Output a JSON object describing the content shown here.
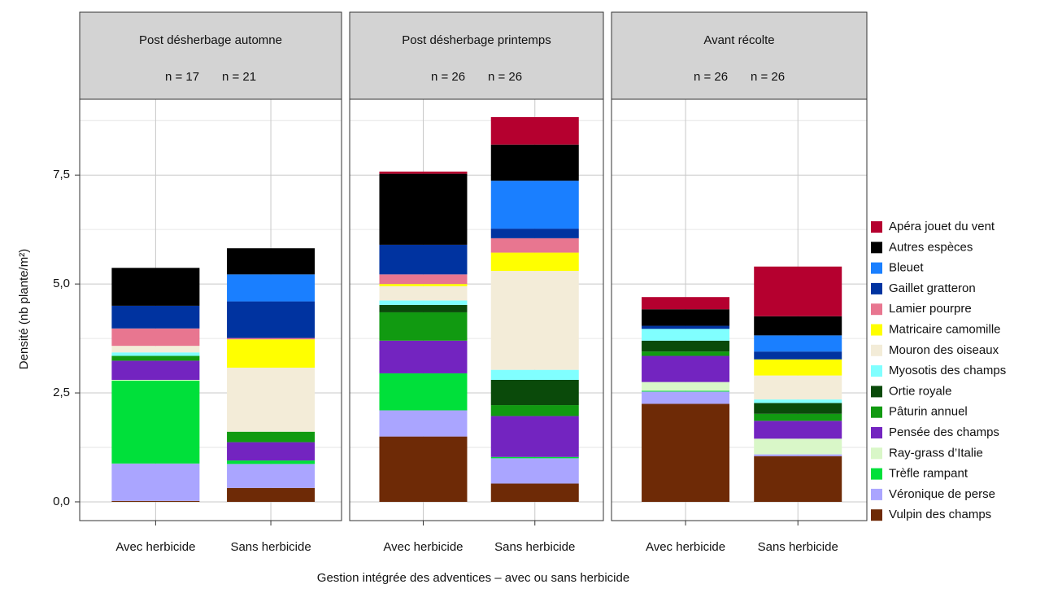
{
  "chart_data": {
    "type": "bar",
    "stacked": true,
    "ylabel": "Densité (nb plante/m²)",
    "xlabel": "Gestion intégrée des adventices – avec ou sans herbicide",
    "facets": [
      {
        "title": "Post désherbage automne",
        "labels": [
          "n = 17",
          "n = 21"
        ]
      },
      {
        "title": "Post désherbage printemps",
        "labels": [
          "n = 26",
          "n = 26"
        ]
      },
      {
        "title": "Avant récolte",
        "labels": [
          "n = 26",
          "n = 26"
        ]
      }
    ],
    "categories": [
      "Avec herbicide",
      "Sans herbicide",
      "Avec herbicide",
      "Sans herbicide",
      "Avec herbicide",
      "Sans herbicide"
    ],
    "ylim": [
      -0.43,
      9.24
    ],
    "yticks": [
      {
        "value": 0,
        "label": "0,0"
      },
      {
        "value": 2.5,
        "label": "2,5"
      },
      {
        "value": 5,
        "label": "5,0"
      },
      {
        "value": 7.5,
        "label": "7,5"
      }
    ],
    "minor_yticks": [
      1.25,
      3.75,
      6.25,
      8.75
    ],
    "grid": true,
    "series": [
      {
        "name": "Apéra jouet du vent",
        "color": "#b5002f",
        "values": [
          0,
          0,
          0.05,
          0.63,
          0.28,
          1.14
        ]
      },
      {
        "name": "Autres espèces",
        "color": "#000000",
        "values": [
          0.87,
          0.6,
          1.63,
          0.83,
          0.38,
          0.44
        ]
      },
      {
        "name": "Bleuet",
        "color": "#1a7fff",
        "values": [
          0,
          0.62,
          0,
          1.1,
          0,
          0.37
        ]
      },
      {
        "name": "Gaillet gratteron",
        "color": "#0033a0",
        "values": [
          0.52,
          0.84,
          0.68,
          0.22,
          0.07,
          0.18
        ]
      },
      {
        "name": "Lamier pourpre",
        "color": "#e87690",
        "values": [
          0.4,
          0.03,
          0.22,
          0.33,
          0,
          0
        ]
      },
      {
        "name": "Matricaire camomille",
        "color": "#ffff00",
        "values": [
          0,
          0.65,
          0.05,
          0.42,
          0,
          0.37
        ]
      },
      {
        "name": "Mouron des oiseaux",
        "color": "#f3ecd8",
        "values": [
          0.15,
          1.47,
          0.33,
          2.27,
          0,
          0.55
        ]
      },
      {
        "name": "Myosotis des champs",
        "color": "#80ffff",
        "values": [
          0.08,
          0,
          0.1,
          0.23,
          0.27,
          0.08
        ]
      },
      {
        "name": "Ortie royale",
        "color": "#0a4a0a",
        "values": [
          0,
          0,
          0.17,
          0.58,
          0.25,
          0.25
        ]
      },
      {
        "name": "Pâturin annuel",
        "color": "#119a11",
        "values": [
          0.11,
          0.24,
          0.65,
          0.25,
          0.1,
          0.16
        ]
      },
      {
        "name": "Pensée des champs",
        "color": "#7324c0",
        "values": [
          0.44,
          0.42,
          0.75,
          0.94,
          0.6,
          0.41
        ]
      },
      {
        "name": "Ray-grass d’Italie",
        "color": "#d9f7c8",
        "values": [
          0.02,
          0,
          0,
          0,
          0.2,
          0.36
        ]
      },
      {
        "name": "Trèfle rampant",
        "color": "#00e03a",
        "values": [
          1.9,
          0.08,
          0.85,
          0.03,
          0.02,
          0
        ]
      },
      {
        "name": "Véronique de perse",
        "color": "#aaa5ff",
        "values": [
          0.86,
          0.55,
          0.6,
          0.58,
          0.28,
          0.04
        ]
      },
      {
        "name": "Vulpin des champs",
        "color": "#6e2a06",
        "values": [
          0.02,
          0.32,
          1.5,
          0.42,
          2.25,
          1.05
        ]
      }
    ]
  }
}
